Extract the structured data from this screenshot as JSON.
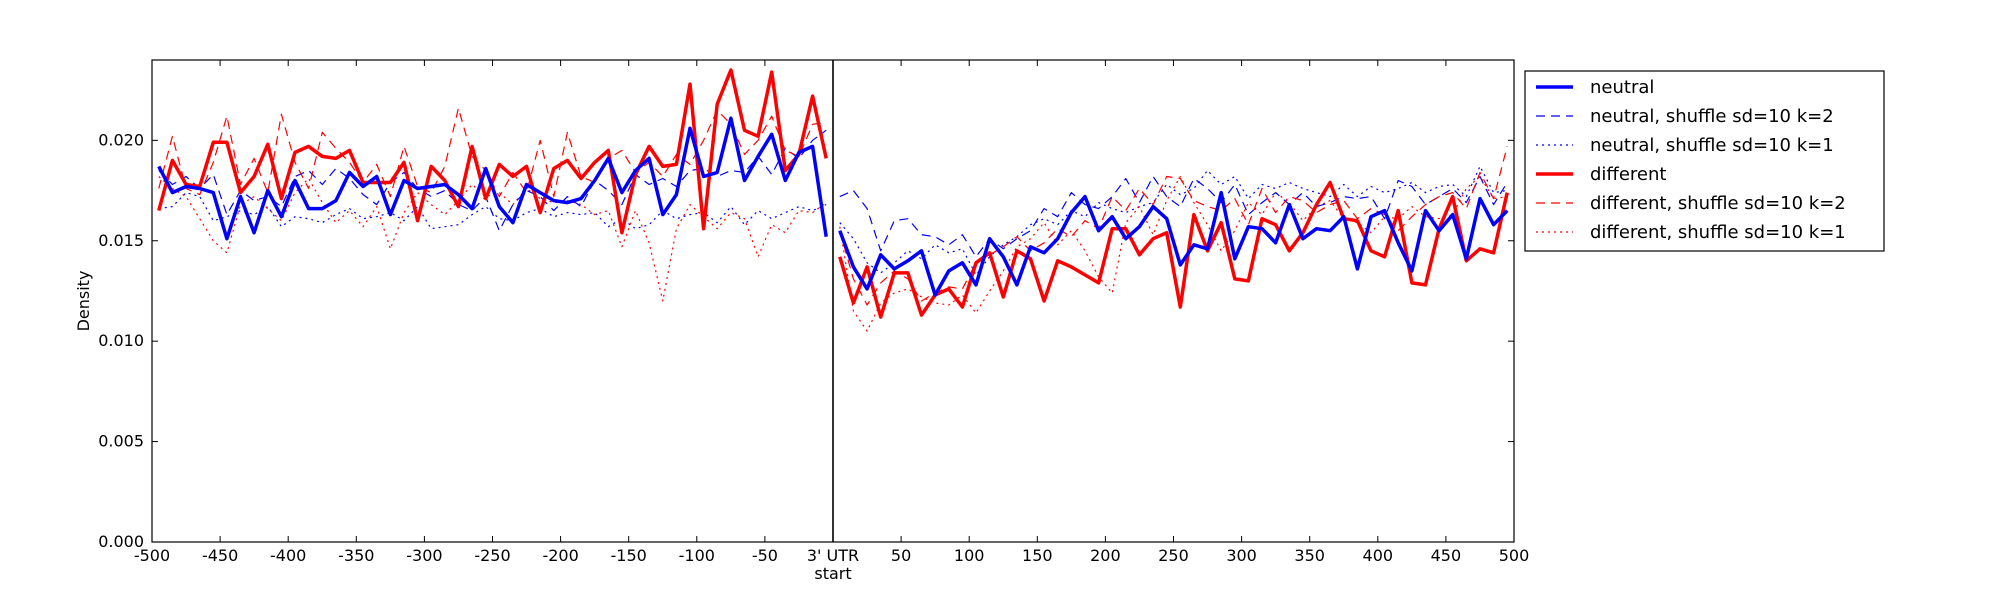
{
  "chart_data": {
    "type": "line",
    "xlabel": "start",
    "ylabel": "Density",
    "xlim": [
      -500,
      500
    ],
    "ylim": [
      0.0,
      0.024
    ],
    "grid": false,
    "legend_position": "outside-right-top",
    "x_ticks": [
      "-500",
      "-450",
      "-400",
      "-350",
      "-300",
      "-250",
      "-200",
      "-150",
      "-100",
      "-50",
      "3' UTR",
      "50",
      "100",
      "150",
      "200",
      "250",
      "300",
      "350",
      "400",
      "450",
      "500"
    ],
    "y_ticks": [
      "0.000",
      "0.005",
      "0.010",
      "0.015",
      "0.020"
    ],
    "vertical_line_at": 0,
    "x_left": [
      -495,
      -485,
      -475,
      -465,
      -455,
      -445,
      -435,
      -425,
      -415,
      -405,
      -395,
      -385,
      -375,
      -365,
      -355,
      -345,
      -335,
      -325,
      -315,
      -305,
      -295,
      -285,
      -275,
      -265,
      -255,
      -245,
      -235,
      -225,
      -215,
      -205,
      -195,
      -185,
      -175,
      -165,
      -155,
      -145,
      -135,
      -125,
      -115,
      -105,
      -95,
      -85,
      -75,
      -65,
      -55,
      -45,
      -35,
      -25,
      -15,
      -5
    ],
    "x_right": [
      5,
      15,
      25,
      35,
      45,
      55,
      65,
      75,
      85,
      95,
      105,
      115,
      125,
      135,
      145,
      155,
      165,
      175,
      185,
      195,
      205,
      215,
      225,
      235,
      245,
      255,
      265,
      275,
      285,
      295,
      305,
      315,
      325,
      335,
      345,
      355,
      365,
      375,
      385,
      395,
      405,
      415,
      425,
      435,
      445,
      455,
      465,
      475,
      485,
      495
    ],
    "series": [
      {
        "name": "neutral",
        "color": "#0000ff",
        "style": "solid",
        "width": 3.5,
        "left": [
          0.0187,
          0.0174,
          0.0177,
          0.0176,
          0.0174,
          0.0151,
          0.0172,
          0.0154,
          0.0175,
          0.0162,
          0.018,
          0.0166,
          0.0166,
          0.017,
          0.0184,
          0.0177,
          0.0182,
          0.0163,
          0.018,
          0.0176,
          0.0177,
          0.0178,
          0.0173,
          0.0166,
          0.0186,
          0.0167,
          0.0159,
          0.0178,
          0.0174,
          0.017,
          0.0169,
          0.0171,
          0.018,
          0.0191,
          0.0174,
          0.0185,
          0.0191,
          0.0163,
          0.0173,
          0.0206,
          0.0182,
          0.0184,
          0.0211,
          0.018,
          0.0192,
          0.0203,
          0.018,
          0.0194,
          0.0197,
          0.0152
        ],
        "right": [
          0.0155,
          0.0137,
          0.0126,
          0.0143,
          0.0136,
          0.014,
          0.0145,
          0.0123,
          0.0135,
          0.0139,
          0.0128,
          0.0151,
          0.0142,
          0.0128,
          0.0147,
          0.0144,
          0.0151,
          0.0164,
          0.0172,
          0.0155,
          0.0162,
          0.0151,
          0.0157,
          0.0167,
          0.0161,
          0.0138,
          0.0148,
          0.0146,
          0.0174,
          0.0141,
          0.0157,
          0.0156,
          0.0149,
          0.0168,
          0.0151,
          0.0156,
          0.0155,
          0.0162,
          0.0136,
          0.0162,
          0.0165,
          0.0149,
          0.0135,
          0.0165,
          0.0155,
          0.0163,
          0.0141,
          0.0171,
          0.0158,
          0.0165
        ]
      },
      {
        "name": "neutral, shuffle sd=10 k=2",
        "color": "#0000ff",
        "style": "dashed",
        "width": 1.2,
        "left": [
          0.0185,
          0.0178,
          0.0182,
          0.0176,
          0.0183,
          0.0163,
          0.0175,
          0.017,
          0.0172,
          0.0167,
          0.0182,
          0.0185,
          0.0178,
          0.0186,
          0.0181,
          0.0173,
          0.0168,
          0.0179,
          0.0184,
          0.0176,
          0.0172,
          0.0175,
          0.0168,
          0.0165,
          0.0172,
          0.0155,
          0.0168,
          0.0175,
          0.0172,
          0.0165,
          0.0172,
          0.0167,
          0.018,
          0.0175,
          0.0168,
          0.0183,
          0.0178,
          0.0181,
          0.0177,
          0.0185,
          0.0186,
          0.0182,
          0.0185,
          0.0184,
          0.0192,
          0.0183,
          0.0196,
          0.0191,
          0.02,
          0.0205
        ],
        "right": [
          0.0172,
          0.0175,
          0.0166,
          0.0145,
          0.016,
          0.0161,
          0.0153,
          0.0152,
          0.0148,
          0.0153,
          0.0142,
          0.0151,
          0.0146,
          0.0151,
          0.0155,
          0.0166,
          0.0162,
          0.0174,
          0.0168,
          0.0166,
          0.0172,
          0.0181,
          0.0169,
          0.0182,
          0.0172,
          0.0167,
          0.0181,
          0.0176,
          0.0169,
          0.0178,
          0.0163,
          0.0169,
          0.0174,
          0.0168,
          0.0174,
          0.0167,
          0.0169,
          0.0172,
          0.0171,
          0.0172,
          0.0161,
          0.018,
          0.0177,
          0.0168,
          0.0172,
          0.0176,
          0.0169,
          0.0182,
          0.0168,
          0.0179
        ]
      },
      {
        "name": "neutral, shuffle sd=10 k=1",
        "color": "#0000ff",
        "style": "dotted",
        "width": 1.2,
        "left": [
          0.0166,
          0.0167,
          0.0174,
          0.0172,
          0.016,
          0.0162,
          0.0165,
          0.0163,
          0.0167,
          0.0157,
          0.0162,
          0.0161,
          0.0159,
          0.0163,
          0.0166,
          0.0161,
          0.0162,
          0.0164,
          0.016,
          0.0167,
          0.0156,
          0.0157,
          0.0158,
          0.0163,
          0.0167,
          0.0161,
          0.016,
          0.0164,
          0.0166,
          0.0162,
          0.0164,
          0.0163,
          0.0164,
          0.0157,
          0.0161,
          0.0156,
          0.0158,
          0.0165,
          0.0161,
          0.0163,
          0.0164,
          0.0159,
          0.0167,
          0.0158,
          0.0165,
          0.0161,
          0.0164,
          0.0167,
          0.0165,
          0.0168
        ],
        "right": [
          0.0159,
          0.0151,
          0.0139,
          0.0134,
          0.0139,
          0.0145,
          0.0141,
          0.0148,
          0.0144,
          0.0146,
          0.0133,
          0.0142,
          0.0148,
          0.0152,
          0.0158,
          0.0161,
          0.0158,
          0.0165,
          0.0162,
          0.0169,
          0.0166,
          0.0164,
          0.0167,
          0.0169,
          0.0178,
          0.0173,
          0.0176,
          0.0185,
          0.0178,
          0.0182,
          0.0171,
          0.0178,
          0.0176,
          0.0179,
          0.0176,
          0.0174,
          0.0172,
          0.0178,
          0.0172,
          0.0177,
          0.0174,
          0.0176,
          0.0179,
          0.0174,
          0.0177,
          0.0178,
          0.0172,
          0.0187,
          0.0174,
          0.0175
        ]
      },
      {
        "name": "different",
        "color": "#ff0000",
        "style": "solid",
        "width": 3.5,
        "left": [
          0.0165,
          0.019,
          0.0178,
          0.0177,
          0.0199,
          0.0199,
          0.0174,
          0.0182,
          0.0198,
          0.0171,
          0.0194,
          0.0197,
          0.0192,
          0.0191,
          0.0195,
          0.0179,
          0.0179,
          0.0179,
          0.0189,
          0.016,
          0.0187,
          0.018,
          0.0167,
          0.0197,
          0.0171,
          0.0188,
          0.0182,
          0.0187,
          0.0164,
          0.0186,
          0.019,
          0.0181,
          0.0189,
          0.0195,
          0.0154,
          0.0183,
          0.0197,
          0.0187,
          0.0188,
          0.0228,
          0.0156,
          0.0218,
          0.0235,
          0.0205,
          0.0202,
          0.0234,
          0.0185,
          0.0193,
          0.0222,
          0.0191
        ],
        "right": [
          0.0142,
          0.0119,
          0.0137,
          0.0112,
          0.0134,
          0.0134,
          0.0113,
          0.0123,
          0.0126,
          0.0117,
          0.0139,
          0.0144,
          0.0122,
          0.0145,
          0.0141,
          0.012,
          0.014,
          0.0137,
          0.0133,
          0.0129,
          0.0156,
          0.0156,
          0.0143,
          0.0151,
          0.0154,
          0.0117,
          0.0163,
          0.0145,
          0.0159,
          0.0131,
          0.013,
          0.0161,
          0.0158,
          0.0145,
          0.0154,
          0.0168,
          0.0179,
          0.0161,
          0.016,
          0.0145,
          0.0142,
          0.0165,
          0.0129,
          0.0128,
          0.0156,
          0.0172,
          0.014,
          0.0146,
          0.0144,
          0.0174
        ]
      },
      {
        "name": "different, shuffle sd=10 k=2",
        "color": "#ff0000",
        "style": "dashed",
        "width": 1.2,
        "left": [
          0.0176,
          0.0202,
          0.0176,
          0.0173,
          0.0189,
          0.0212,
          0.0178,
          0.0191,
          0.0174,
          0.0213,
          0.0189,
          0.0176,
          0.0204,
          0.0196,
          0.0189,
          0.0179,
          0.0188,
          0.0172,
          0.0197,
          0.0177,
          0.0174,
          0.0187,
          0.0216,
          0.0192,
          0.0185,
          0.0172,
          0.0184,
          0.0174,
          0.02,
          0.0172,
          0.0204,
          0.0182,
          0.0179,
          0.0191,
          0.0195,
          0.0184,
          0.0189,
          0.0182,
          0.0193,
          0.0188,
          0.02,
          0.0215,
          0.0208,
          0.0193,
          0.02,
          0.0212,
          0.0195,
          0.0192,
          0.0208,
          0.0209
        ],
        "right": [
          0.0155,
          0.0131,
          0.0118,
          0.0129,
          0.0135,
          0.0131,
          0.012,
          0.0124,
          0.0127,
          0.0126,
          0.0139,
          0.0143,
          0.0147,
          0.0152,
          0.0145,
          0.0149,
          0.0156,
          0.0152,
          0.016,
          0.0156,
          0.0172,
          0.0165,
          0.0176,
          0.0168,
          0.0182,
          0.0181,
          0.017,
          0.0167,
          0.0165,
          0.0171,
          0.0158,
          0.0176,
          0.0164,
          0.0172,
          0.017,
          0.0164,
          0.0168,
          0.017,
          0.0161,
          0.0166,
          0.0163,
          0.0155,
          0.0162,
          0.0168,
          0.0172,
          0.0174,
          0.0166,
          0.0184,
          0.0171,
          0.0197
        ]
      },
      {
        "name": "different, shuffle sd=10 k=1",
        "color": "#ff0000",
        "style": "dotted",
        "width": 1.2,
        "left": [
          0.0182,
          0.0176,
          0.0172,
          0.0161,
          0.015,
          0.0144,
          0.0168,
          0.0172,
          0.0166,
          0.016,
          0.0174,
          0.0181,
          0.0169,
          0.0159,
          0.0165,
          0.0157,
          0.0167,
          0.0146,
          0.0164,
          0.0174,
          0.0168,
          0.0163,
          0.017,
          0.0178,
          0.0172,
          0.0174,
          0.0168,
          0.0176,
          0.0171,
          0.0169,
          0.017,
          0.0168,
          0.0163,
          0.0165,
          0.0147,
          0.0165,
          0.0149,
          0.012,
          0.0156,
          0.0168,
          0.0162,
          0.0156,
          0.0164,
          0.0161,
          0.0142,
          0.0158,
          0.0154,
          0.0165,
          0.0164,
          0.0169
        ],
        "right": [
          0.0157,
          0.0115,
          0.0105,
          0.0119,
          0.0124,
          0.0126,
          0.0122,
          0.0119,
          0.0118,
          0.0123,
          0.0114,
          0.0125,
          0.0135,
          0.0147,
          0.0151,
          0.0159,
          0.0148,
          0.0155,
          0.0145,
          0.0132,
          0.0124,
          0.0159,
          0.0167,
          0.0153,
          0.017,
          0.0182,
          0.0169,
          0.0158,
          0.0145,
          0.0155,
          0.0169,
          0.0163,
          0.0174,
          0.0169,
          0.016,
          0.0167,
          0.017,
          0.0161,
          0.0159,
          0.0154,
          0.0162,
          0.0161,
          0.0167,
          0.0162,
          0.0161,
          0.0163,
          0.0176,
          0.0182,
          0.0171,
          0.0172
        ]
      }
    ]
  }
}
